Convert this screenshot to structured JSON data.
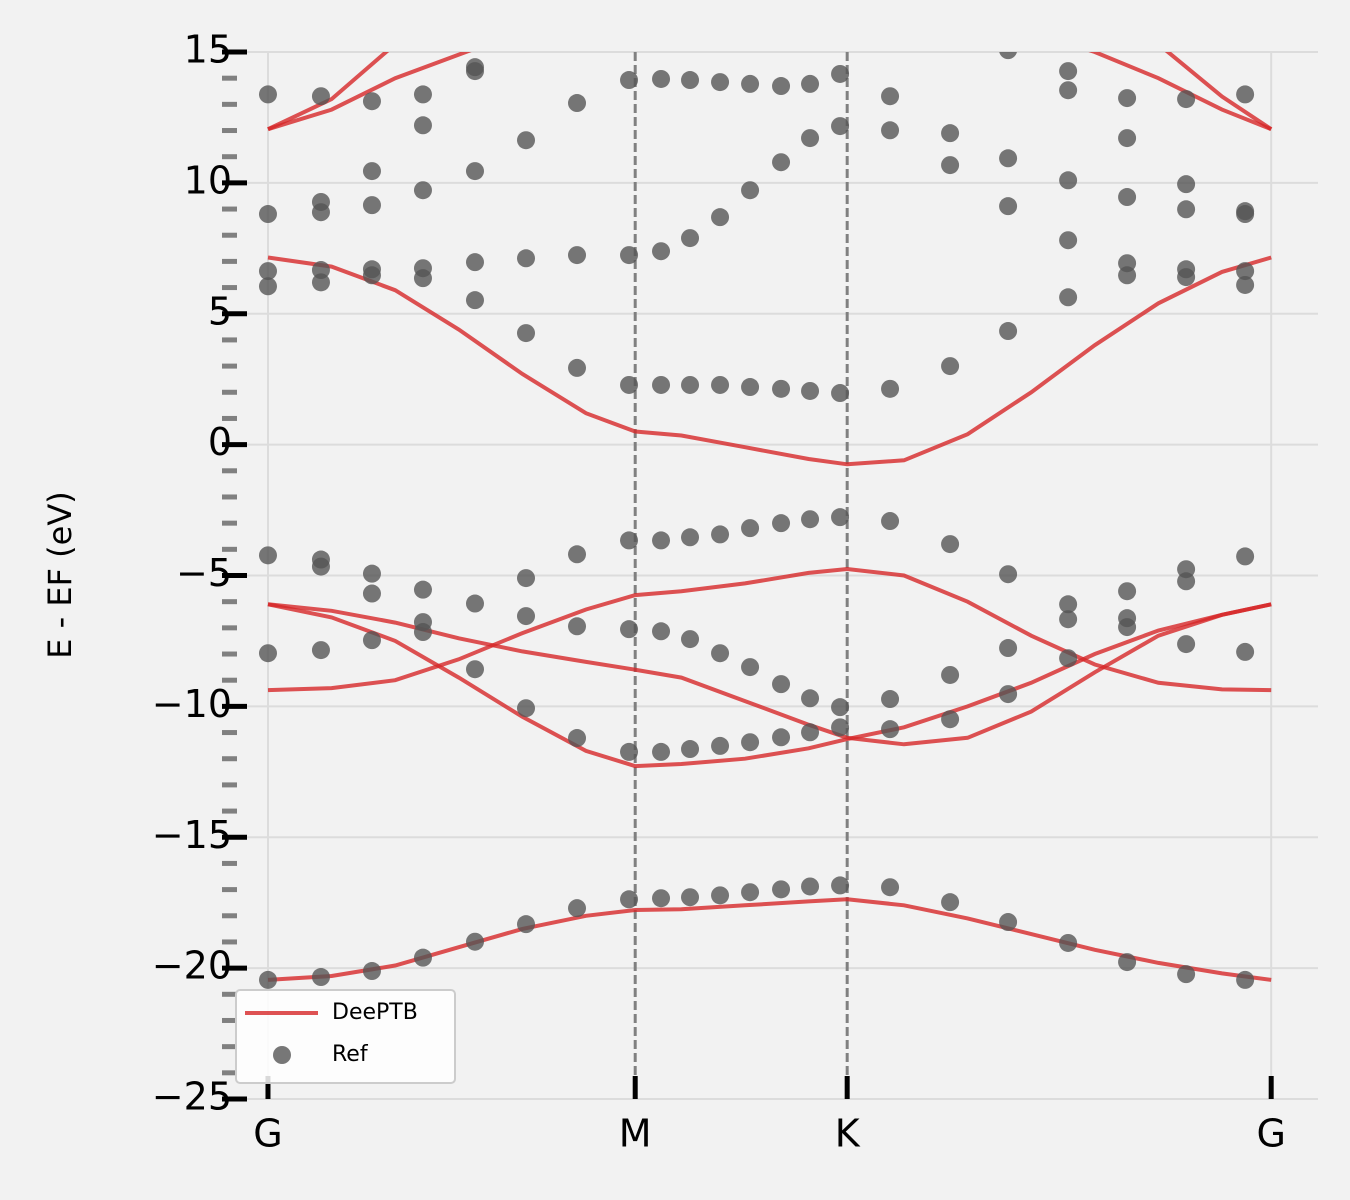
{
  "chart_data": {
    "type": "line",
    "y_label": "E - EF (eV)",
    "xlim": [
      -0.044,
      1.651
    ],
    "xticks": [
      {
        "value": 0,
        "label": "G"
      },
      {
        "value": 0.5774,
        "label": "M"
      },
      {
        "value": 0.9107,
        "label": "K"
      },
      {
        "value": 1.5774,
        "label": "G"
      }
    ],
    "ylim": [
      -25,
      15
    ],
    "yticks": [
      {
        "value": -25,
        "label": "−25"
      },
      {
        "value": -20,
        "label": "−20"
      },
      {
        "value": -15,
        "label": "−15"
      },
      {
        "value": -10,
        "label": "−10"
      },
      {
        "value": -5,
        "label": "−5"
      },
      0,
      5,
      10,
      15
    ],
    "grid": true,
    "legend": "lower left",
    "series": [
      {
        "name": "DeePTB",
        "type": "line",
        "color": "#d62728",
        "x": [
          0,
          0.1,
          0.2,
          0.3,
          0.4,
          0.5,
          0.5774,
          0.65,
          0.75,
          0.85,
          0.9107,
          1.0,
          1.1,
          1.2,
          1.3,
          1.4,
          1.5,
          1.5774
        ],
        "bands": [
          [
            -20.45,
            -20.3,
            -19.9,
            -19.2,
            -18.5,
            -18.0,
            -17.78,
            -17.75,
            -17.6,
            -17.45,
            -17.37,
            -17.6,
            -18.1,
            -18.7,
            -19.3,
            -19.8,
            -20.2,
            -20.45
          ],
          [
            -6.1,
            -6.6,
            -7.5,
            -8.9,
            -10.4,
            -11.7,
            -12.28,
            -12.2,
            -12.0,
            -11.6,
            -11.25,
            -10.8,
            -10.0,
            -9.1,
            -8.0,
            -7.1,
            -6.5,
            -6.1
          ],
          [
            -6.1,
            -6.35,
            -6.8,
            -7.4,
            -7.9,
            -8.3,
            -8.6,
            -8.9,
            -9.8,
            -10.7,
            -11.2,
            -11.45,
            -11.2,
            -10.2,
            -8.7,
            -7.3,
            -6.5,
            -6.1
          ],
          [
            -9.38,
            -9.3,
            -9.0,
            -8.2,
            -7.2,
            -6.3,
            -5.75,
            -5.6,
            -5.3,
            -4.9,
            -4.75,
            -5.0,
            -6.0,
            -7.3,
            -8.4,
            -9.1,
            -9.35,
            -9.38
          ],
          [
            7.15,
            6.8,
            5.9,
            4.4,
            2.7,
            1.2,
            0.5,
            0.35,
            -0.1,
            -0.55,
            -0.75,
            -0.6,
            0.4,
            2.0,
            3.8,
            5.4,
            6.6,
            7.15
          ],
          [
            12.05,
            13.2,
            15.3,
            17.5,
            null,
            null,
            null,
            null,
            null,
            null,
            null,
            null,
            null,
            null,
            17.5,
            15.3,
            13.3,
            12.05
          ],
          [
            12.05,
            12.8,
            14.0,
            14.9,
            15.8,
            null,
            null,
            null,
            null,
            null,
            null,
            null,
            null,
            15.8,
            15.0,
            14.0,
            12.8,
            12.05
          ]
        ]
      },
      {
        "name": "Ref",
        "type": "scatter",
        "color": "#555555",
        "x": [
          0,
          0,
          0,
          0,
          0,
          0,
          0,
          0.0833,
          0.0833,
          0.0833,
          0.0833,
          0.0833,
          0.0833,
          0.0833,
          0.0833,
          0.0833,
          0.1635,
          0.1635,
          0.1635,
          0.1635,
          0.1635,
          0.1635,
          0.1635,
          0.1635,
          0.1635,
          0.2437,
          0.2437,
          0.2437,
          0.2437,
          0.2437,
          0.2437,
          0.2437,
          0.2437,
          0.2437,
          0.3255,
          0.3255,
          0.3255,
          0.3255,
          0.3255,
          0.3255,
          0.3255,
          0.3255,
          0.4057,
          0.4057,
          0.4057,
          0.4057,
          0.4057,
          0.4057,
          0.4057,
          0.4859,
          0.4859,
          0.4859,
          0.4859,
          0.4859,
          0.4859,
          0.4859,
          0.5677,
          0.5677,
          0.5677,
          0.5677,
          0.5677,
          0.5677,
          0.5677,
          0.618,
          0.618,
          0.618,
          0.618,
          0.618,
          0.618,
          0.618,
          0.6636,
          0.6636,
          0.6636,
          0.6636,
          0.6636,
          0.6636,
          0.6636,
          0.7108,
          0.7108,
          0.7108,
          0.7108,
          0.7108,
          0.7108,
          0.7108,
          0.758,
          0.758,
          0.758,
          0.758,
          0.758,
          0.758,
          0.758,
          0.8067,
          0.8067,
          0.8067,
          0.8067,
          0.8067,
          0.8067,
          0.8067,
          0.8523,
          0.8523,
          0.8523,
          0.8523,
          0.8523,
          0.8523,
          0.8523,
          0.8995,
          0.8995,
          0.8995,
          0.8995,
          0.8995,
          0.8995,
          0.8995,
          0.9781,
          0.9781,
          0.9781,
          0.9781,
          0.9781,
          0.9781,
          0.9781,
          1.0725,
          1.0725,
          1.0725,
          1.0725,
          1.0725,
          1.0725,
          1.0725,
          1.1637,
          1.1637,
          1.1637,
          1.1637,
          1.1637,
          1.1637,
          1.1637,
          1.1637,
          1.2581,
          1.2581,
          1.2581,
          1.2581,
          1.2581,
          1.2581,
          1.2581,
          1.2581,
          1.2581,
          1.3508,
          1.3508,
          1.3508,
          1.3508,
          1.3508,
          1.3508,
          1.3508,
          1.3508,
          1.3508,
          1.4436,
          1.4436,
          1.4436,
          1.4436,
          1.4436,
          1.4436,
          1.4436,
          1.4436,
          1.4436,
          1.5364,
          1.5364,
          1.5364,
          1.5364,
          1.5364,
          1.5364,
          1.5364,
          1.5364
        ],
        "y": [
          13.38,
          8.81,
          6.63,
          6.05,
          -4.23,
          -7.97,
          -20.45,
          13.31,
          9.27,
          8.88,
          6.67,
          6.2,
          -4.39,
          -4.66,
          -7.85,
          -20.34,
          13.12,
          10.45,
          9.15,
          6.7,
          6.47,
          -4.93,
          -5.69,
          -7.47,
          -20.11,
          13.38,
          12.2,
          9.72,
          6.74,
          6.36,
          -5.54,
          -6.78,
          -7.16,
          -19.6,
          14.42,
          14.27,
          10.45,
          6.97,
          5.52,
          -6.07,
          -8.58,
          -18.99,
          11.63,
          7.12,
          4.26,
          -5.1,
          -6.55,
          -10.07,
          -18.32,
          13.05,
          7.24,
          2.93,
          -4.19,
          -6.94,
          -11.21,
          -17.71,
          13.93,
          7.24,
          2.28,
          -3.66,
          -7.05,
          -11.74,
          -17.37,
          13.97,
          7.39,
          2.28,
          -3.66,
          -7.13,
          -11.74,
          -17.33,
          13.93,
          7.89,
          2.28,
          -3.54,
          -7.43,
          -11.63,
          -17.29,
          13.85,
          8.69,
          2.28,
          -3.43,
          -7.97,
          -11.51,
          -17.22,
          13.78,
          9.72,
          2.2,
          -3.19,
          -8.5,
          -11.37,
          -17.1,
          13.7,
          10.79,
          2.13,
          -3.0,
          -9.15,
          -11.18,
          -16.99,
          13.78,
          11.71,
          2.05,
          -2.85,
          -9.69,
          -10.99,
          -16.88,
          14.16,
          12.17,
          1.97,
          -2.77,
          -10.03,
          -10.8,
          -16.84,
          13.31,
          12.01,
          2.13,
          -2.92,
          -9.72,
          -10.87,
          -16.91,
          11.9,
          10.68,
          3.0,
          -3.8,
          -8.8,
          -10.49,
          -17.48,
          15.07,
          10.94,
          9.11,
          4.34,
          -4.95,
          -7.77,
          -9.53,
          -18.24,
          14.27,
          13.54,
          10.1,
          7.81,
          5.63,
          -6.1,
          -6.67,
          -8.16,
          -19.04,
          13.24,
          11.71,
          9.46,
          6.93,
          6.47,
          -5.6,
          -6.63,
          -6.97,
          -19.77,
          13.2,
          9.95,
          8.99,
          6.7,
          6.4,
          -4.76,
          -5.22,
          -7.62,
          -20.23,
          13.38,
          8.92,
          8.81,
          6.63,
          6.1,
          -4.27,
          -7.92,
          -20.45
        ]
      }
    ]
  }
}
